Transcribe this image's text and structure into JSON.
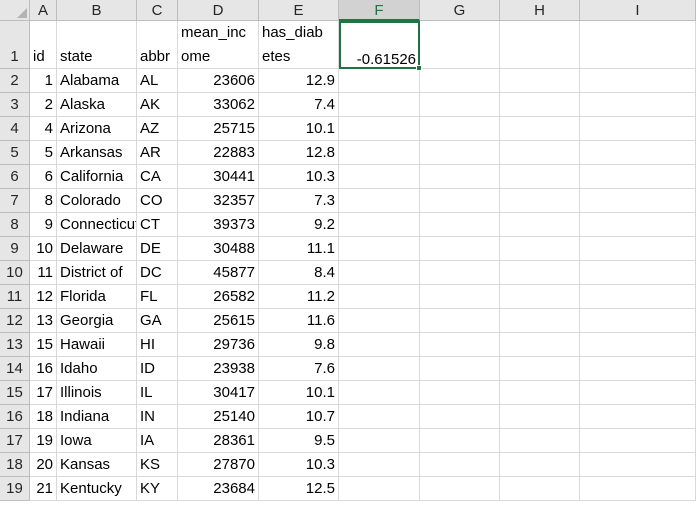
{
  "columns": [
    "A",
    "B",
    "C",
    "D",
    "E",
    "F",
    "G",
    "H",
    "I"
  ],
  "selected_column": "F",
  "row_numbers": [
    "1",
    "2",
    "3",
    "4",
    "5",
    "6",
    "7",
    "8",
    "9",
    "10",
    "11",
    "12",
    "13",
    "14",
    "15",
    "16",
    "17",
    "18",
    "19"
  ],
  "headers": {
    "A": "id",
    "B": "state",
    "C": "abbr",
    "D_line1": "mean_inc",
    "D_line2": "ome",
    "E_line1": "has_diab",
    "E_line2": "etes",
    "F": "-0.61526"
  },
  "rows": [
    {
      "id": "1",
      "state": "Alabama",
      "abbr": "AL",
      "mean_income": "23606",
      "has_diabetes": "12.9"
    },
    {
      "id": "2",
      "state": "Alaska",
      "abbr": "AK",
      "mean_income": "33062",
      "has_diabetes": "7.4"
    },
    {
      "id": "4",
      "state": "Arizona",
      "abbr": "AZ",
      "mean_income": "25715",
      "has_diabetes": "10.1"
    },
    {
      "id": "5",
      "state": "Arkansas",
      "abbr": "AR",
      "mean_income": "22883",
      "has_diabetes": "12.8"
    },
    {
      "id": "6",
      "state": "California",
      "abbr": "CA",
      "mean_income": "30441",
      "has_diabetes": "10.3"
    },
    {
      "id": "8",
      "state": "Colorado",
      "abbr": "CO",
      "mean_income": "32357",
      "has_diabetes": "7.3"
    },
    {
      "id": "9",
      "state": "Connecticut",
      "abbr": "CT",
      "mean_income": "39373",
      "has_diabetes": "9.2"
    },
    {
      "id": "10",
      "state": "Delaware",
      "abbr": "DE",
      "mean_income": "30488",
      "has_diabetes": "11.1"
    },
    {
      "id": "11",
      "state": "District of",
      "abbr": "DC",
      "mean_income": "45877",
      "has_diabetes": "8.4"
    },
    {
      "id": "12",
      "state": "Florida",
      "abbr": "FL",
      "mean_income": "26582",
      "has_diabetes": "11.2"
    },
    {
      "id": "13",
      "state": "Georgia",
      "abbr": "GA",
      "mean_income": "25615",
      "has_diabetes": "11.6"
    },
    {
      "id": "15",
      "state": "Hawaii",
      "abbr": "HI",
      "mean_income": "29736",
      "has_diabetes": "9.8"
    },
    {
      "id": "16",
      "state": "Idaho",
      "abbr": "ID",
      "mean_income": "23938",
      "has_diabetes": "7.6"
    },
    {
      "id": "17",
      "state": "Illinois",
      "abbr": "IL",
      "mean_income": "30417",
      "has_diabetes": "10.1"
    },
    {
      "id": "18",
      "state": "Indiana",
      "abbr": "IN",
      "mean_income": "25140",
      "has_diabetes": "10.7"
    },
    {
      "id": "19",
      "state": "Iowa",
      "abbr": "IA",
      "mean_income": "28361",
      "has_diabetes": "9.5"
    },
    {
      "id": "20",
      "state": "Kansas",
      "abbr": "KS",
      "mean_income": "27870",
      "has_diabetes": "10.3"
    },
    {
      "id": "21",
      "state": "Kentucky",
      "abbr": "KY",
      "mean_income": "23684",
      "has_diabetes": "12.5"
    }
  ],
  "colors": {
    "selection": "#217346",
    "header_bg": "#e6e6e6",
    "gridline": "#d9d9d9"
  }
}
